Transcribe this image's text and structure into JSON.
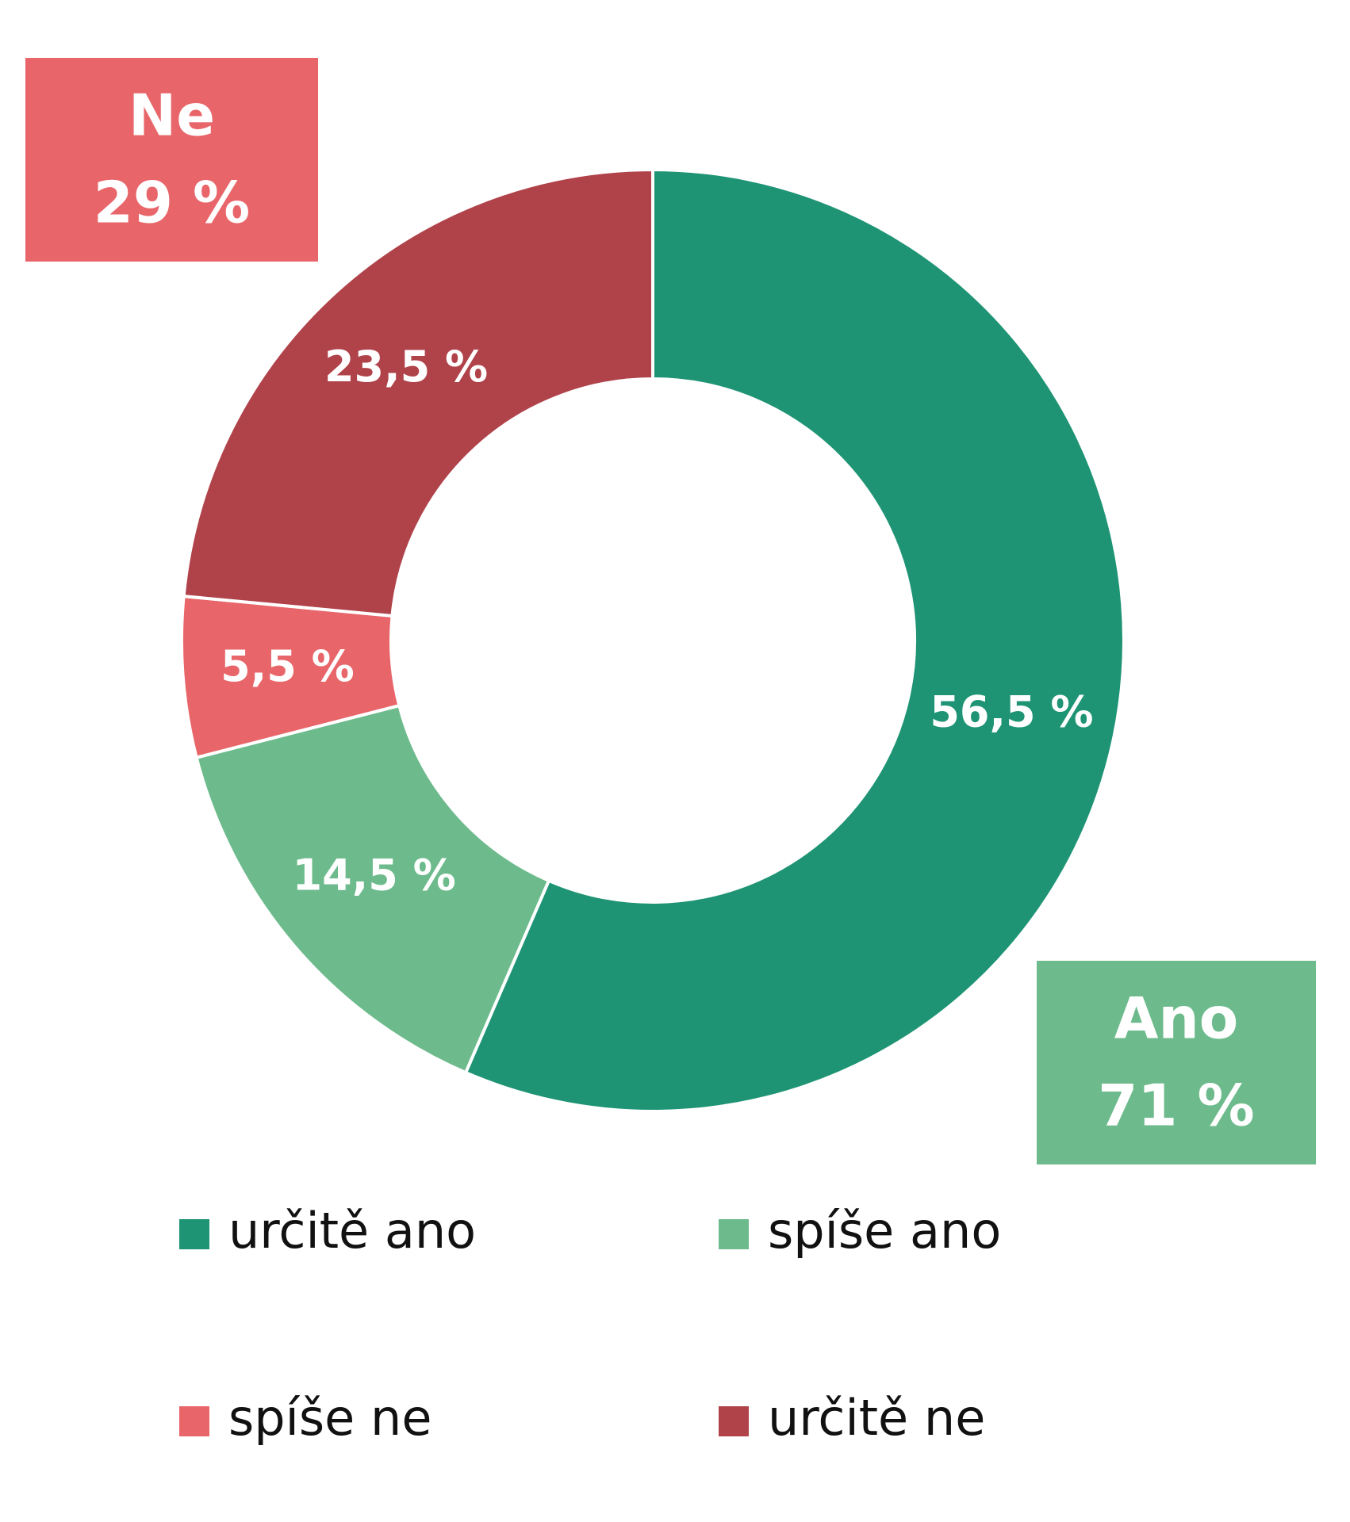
{
  "chart_data": {
    "type": "donut",
    "categories": [
      "určitě ano",
      "spíše ano",
      "spíše ne",
      "určitě ne"
    ],
    "values": [
      56.5,
      14.5,
      5.5,
      23.5
    ],
    "value_labels": [
      "56,5 %",
      "14,5 %",
      "5,5 %",
      "23,5 %"
    ],
    "colors": [
      "#1e9474",
      "#6dbb8c",
      "#e8666a",
      "#b0424a"
    ],
    "annotations": [
      {
        "title": "Ne",
        "value": 29,
        "value_label": "29 %",
        "color": "#e8666a"
      },
      {
        "title": "Ano",
        "value": 71,
        "value_label": "71 %",
        "color": "#6dbb8c"
      }
    ],
    "legend": "bottom"
  }
}
